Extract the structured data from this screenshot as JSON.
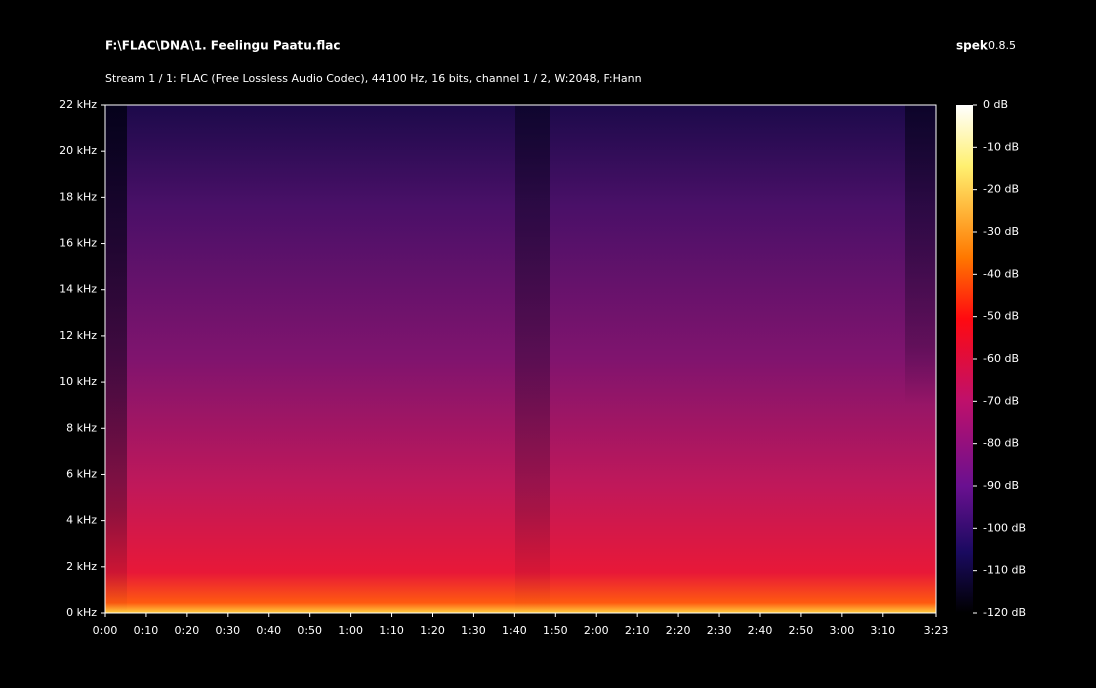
{
  "header": {
    "title": "F:\\FLAC\\DNA\\1. Feelingu Paatu.flac",
    "app": "spek",
    "version": "0.8.5",
    "subtitle": "Stream 1 / 1: FLAC (Free Lossless Audio Codec), 44100 Hz, 16 bits, channel 1 / 2, W:2048, F:Hann"
  },
  "axes": {
    "y_labels": [
      "22 kHz",
      "20 kHz",
      "18 kHz",
      "16 kHz",
      "14 kHz",
      "12 kHz",
      "10 kHz",
      "8 kHz",
      "6 kHz",
      "4 kHz",
      "2 kHz",
      "0 kHz"
    ],
    "x_labels": [
      "0:00",
      "0:10",
      "0:20",
      "0:30",
      "0:40",
      "0:50",
      "1:00",
      "1:10",
      "1:20",
      "1:30",
      "1:40",
      "1:50",
      "2:00",
      "2:10",
      "2:20",
      "2:30",
      "2:40",
      "2:50",
      "3:00",
      "3:10",
      "3:23"
    ],
    "colorbar_labels": [
      "0 dB",
      "-10 dB",
      "-20 dB",
      "-30 dB",
      "-40 dB",
      "-50 dB",
      "-60 dB",
      "-70 dB",
      "-80 dB",
      "-90 dB",
      "-100 dB",
      "-110 dB",
      "-120 dB"
    ]
  }
}
